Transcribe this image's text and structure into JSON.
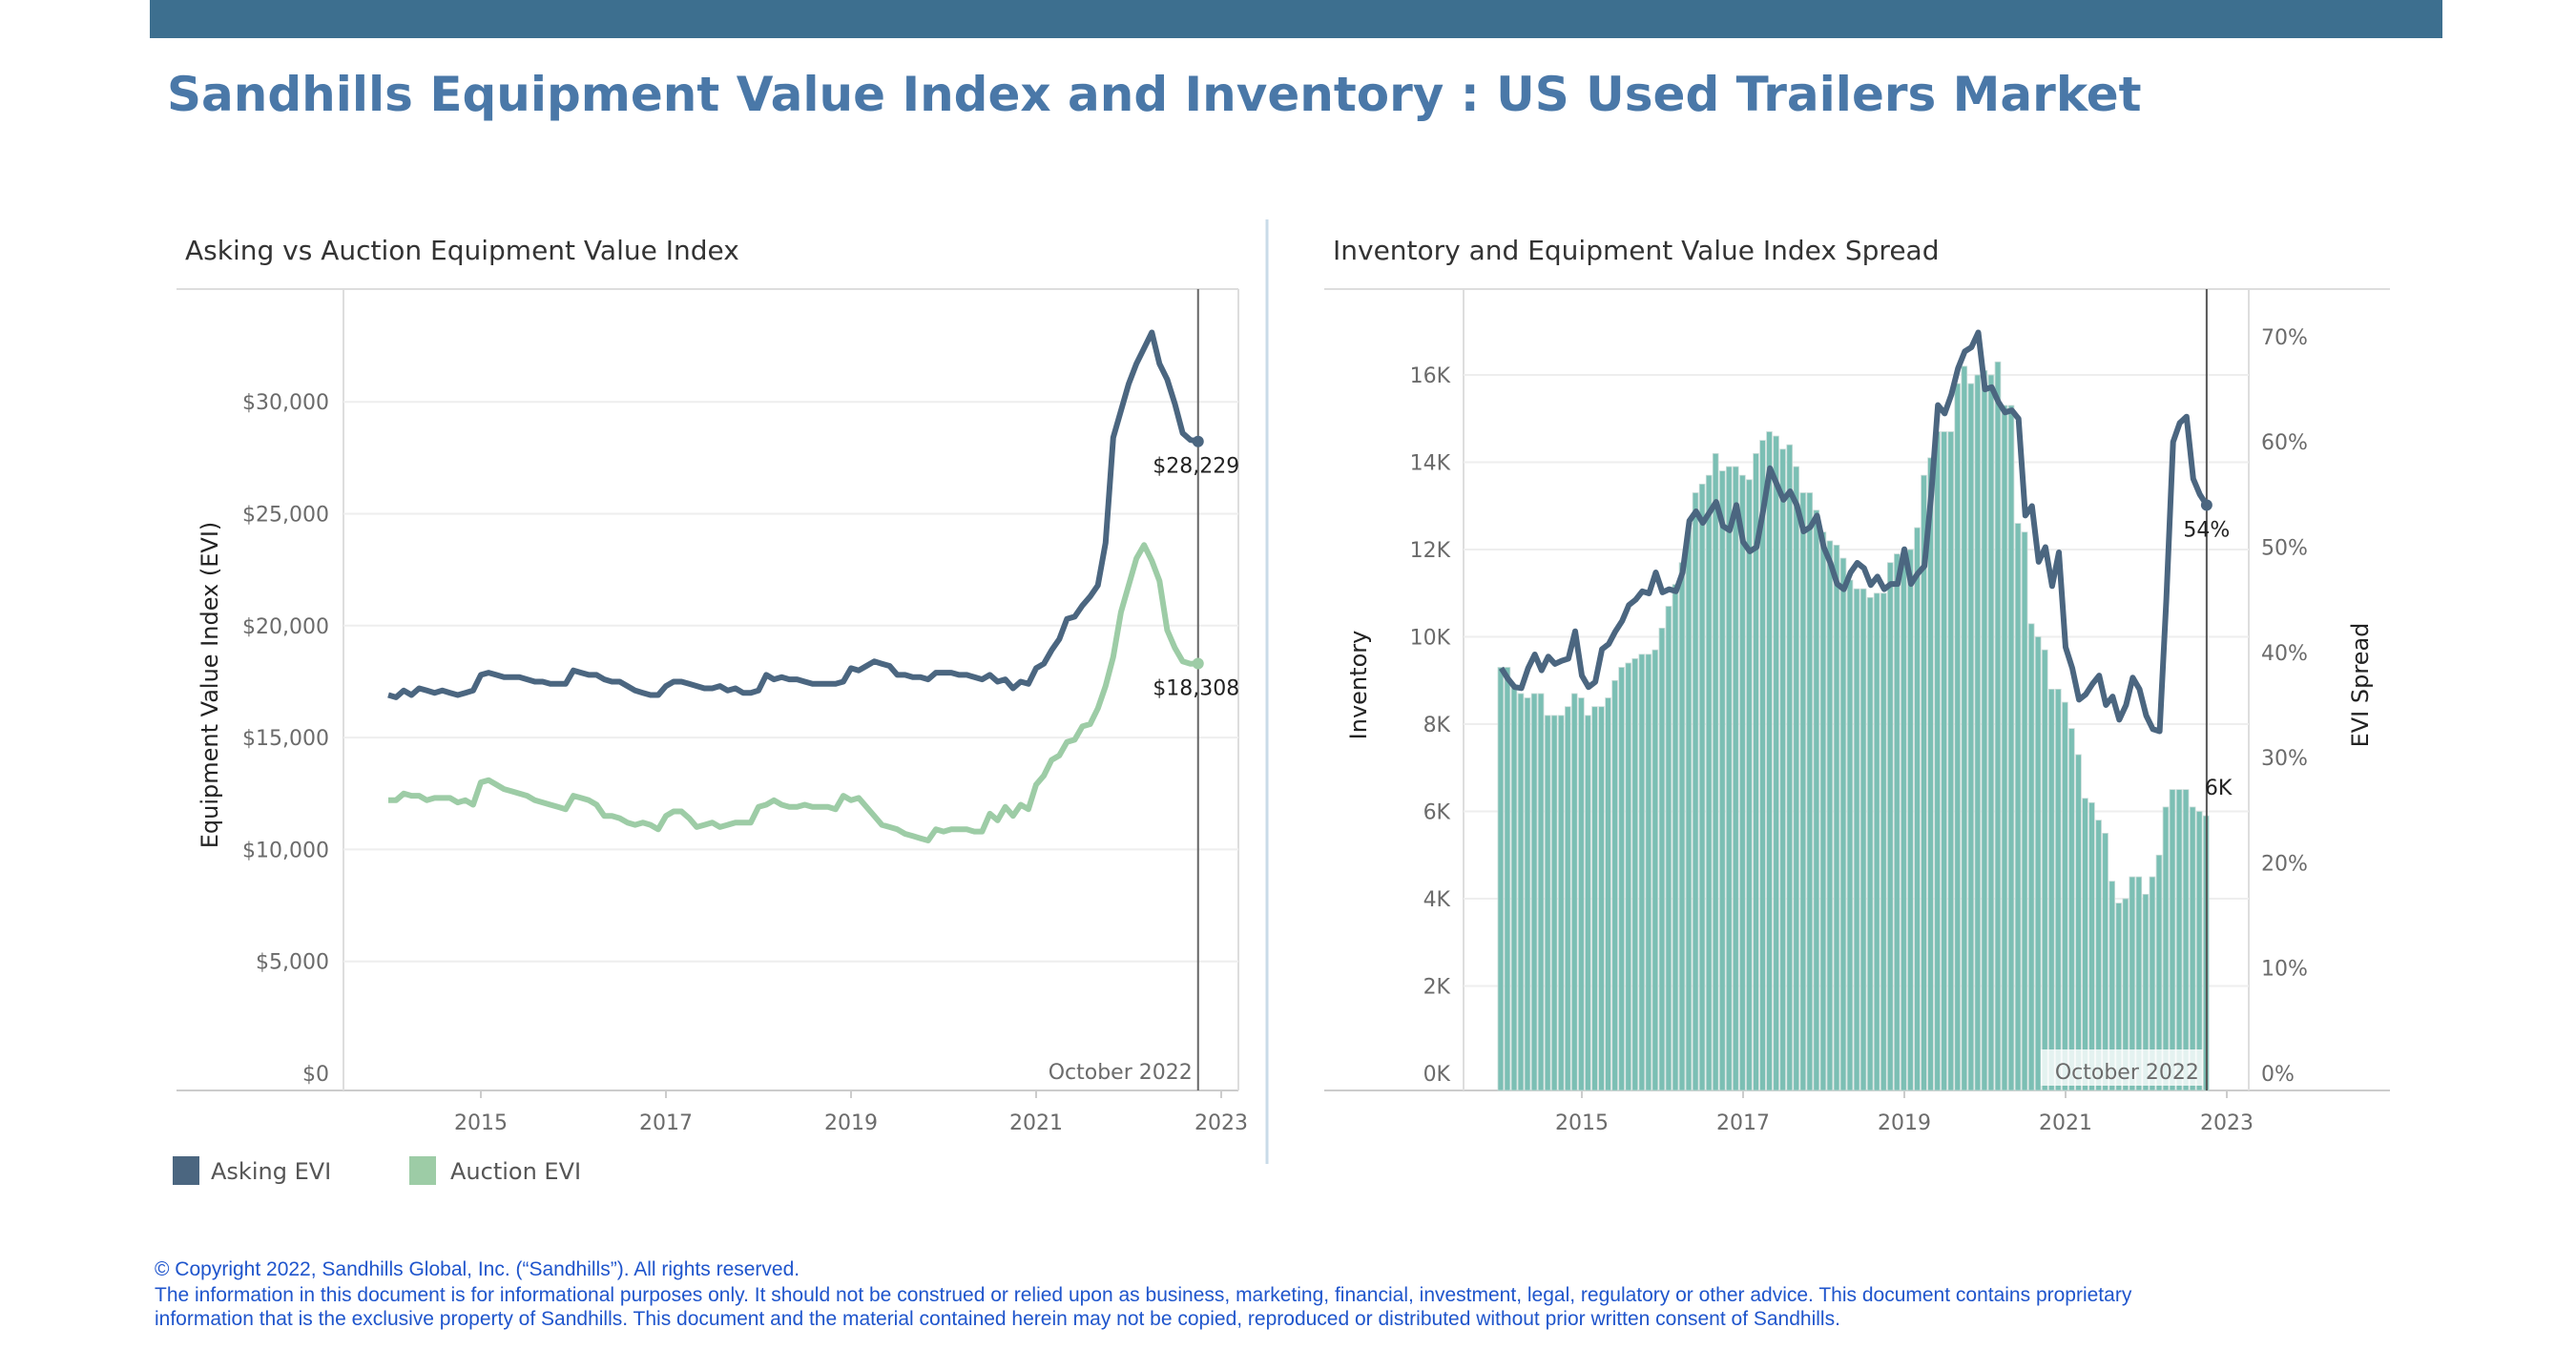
{
  "header": {
    "title": "Sandhills Equipment Value Index and Inventory : US Used Trailers Market",
    "bar_color": "#3d6f8f"
  },
  "footer": {
    "lines": [
      "© Copyright 2022, Sandhills Global, Inc. (“Sandhills”). All rights reserved.",
      "The information in this document is for informational purposes only.  It should not be construed or relied upon as business, marketing, financial, investment, legal, regulatory or other advice. This document contains proprietary",
      "information that is the exclusive property of Sandhills. This document and the material contained herein may not be copied, reproduced or distributed without prior written consent of Sandhills."
    ]
  },
  "chart_data": [
    {
      "type": "line",
      "title": "Asking vs Auction Equipment Value Index",
      "ylabel": "Equipment Value Index (EVI)",
      "xlabel": "",
      "x_start": "2014-01",
      "x_end": "2022-10",
      "x_frequency": "monthly",
      "xticks": [
        "2015",
        "2017",
        "2019",
        "2021",
        "2023"
      ],
      "yticks": [
        "$0",
        "$5,000",
        "$10,000",
        "$15,000",
        "$20,000",
        "$25,000",
        "$30,000"
      ],
      "ylim": [
        0,
        34000
      ],
      "grid": true,
      "reference_line": {
        "date": "2022-10",
        "label": "October 2022"
      },
      "legend": {
        "placement": "bottom-left"
      },
      "series": [
        {
          "name": "Asking EVI",
          "color": "#4b6680",
          "end_label": "$28,229",
          "values": [
            16900,
            16800,
            17100,
            16900,
            17200,
            17100,
            17000,
            17100,
            17000,
            16900,
            17000,
            17100,
            17800,
            17900,
            17800,
            17700,
            17700,
            17700,
            17600,
            17500,
            17500,
            17400,
            17400,
            17400,
            18000,
            17900,
            17800,
            17800,
            17600,
            17500,
            17500,
            17300,
            17100,
            17000,
            16900,
            16900,
            17300,
            17500,
            17500,
            17400,
            17300,
            17200,
            17200,
            17300,
            17100,
            17200,
            17000,
            17000,
            17100,
            17800,
            17600,
            17700,
            17600,
            17600,
            17500,
            17400,
            17400,
            17400,
            17400,
            17500,
            18100,
            18000,
            18200,
            18400,
            18300,
            18200,
            17800,
            17800,
            17700,
            17700,
            17600,
            17900,
            17900,
            17900,
            17800,
            17800,
            17700,
            17600,
            17800,
            17500,
            17600,
            17200,
            17500,
            17400,
            18100,
            18300,
            18900,
            19400,
            20300,
            20400,
            20900,
            21300,
            21800,
            23700,
            28400,
            29600,
            30800,
            31700,
            32400,
            33100,
            31700,
            31000,
            29900,
            28600,
            28300,
            28229
          ]
        },
        {
          "name": "Auction EVI",
          "color": "#9dcca6",
          "end_label": "$18,308",
          "values": [
            12200,
            12200,
            12500,
            12400,
            12400,
            12200,
            12300,
            12300,
            12300,
            12100,
            12200,
            12000,
            13000,
            13100,
            12900,
            12700,
            12600,
            12500,
            12400,
            12200,
            12100,
            12000,
            11900,
            11800,
            12400,
            12300,
            12200,
            12000,
            11500,
            11500,
            11400,
            11200,
            11100,
            11200,
            11100,
            10900,
            11500,
            11700,
            11700,
            11400,
            11000,
            11100,
            11200,
            11000,
            11100,
            11200,
            11200,
            11200,
            11900,
            12000,
            12200,
            12000,
            11900,
            11900,
            12000,
            11900,
            11900,
            11900,
            11800,
            12400,
            12200,
            12300,
            11900,
            11500,
            11100,
            11000,
            10900,
            10700,
            10600,
            10500,
            10400,
            10900,
            10800,
            10900,
            10900,
            10900,
            10800,
            10800,
            11600,
            11300,
            11900,
            11500,
            12000,
            11800,
            12900,
            13300,
            14000,
            14200,
            14800,
            14900,
            15500,
            15600,
            16300,
            17300,
            18600,
            20600,
            21800,
            23000,
            23600,
            22900,
            22000,
            19800,
            19000,
            18400,
            18300,
            18308
          ]
        }
      ]
    },
    {
      "type": "bar+line",
      "title": "Inventory and Equipment Value Index Spread",
      "ylabel": "Inventory",
      "y2label": "EVI Spread",
      "xlabel": "",
      "x_start": "2014-01",
      "x_end": "2022-10",
      "x_frequency": "monthly",
      "xticks": [
        "2015",
        "2017",
        "2019",
        "2021",
        "2023"
      ],
      "yticks": [
        "0K",
        "2K",
        "4K",
        "6K",
        "8K",
        "10K",
        "12K",
        "14K",
        "16K"
      ],
      "y2ticks": [
        "0%",
        "10%",
        "20%",
        "30%",
        "40%",
        "50%",
        "60%",
        "70%"
      ],
      "ylim": [
        0,
        17800
      ],
      "y2lim": [
        0,
        74
      ],
      "grid": true,
      "reference_line": {
        "date": "2022-10",
        "label": "October 2022"
      },
      "series": [
        {
          "name": "Inventory",
          "kind": "bar",
          "color": "#7bbfb4",
          "end_label": "6K",
          "values": [
            9300,
            9300,
            8900,
            8700,
            8600,
            8700,
            8700,
            8200,
            8200,
            8200,
            8400,
            8700,
            8600,
            8200,
            8400,
            8400,
            8600,
            9000,
            9300,
            9400,
            9500,
            9600,
            9600,
            9700,
            10200,
            10700,
            11200,
            11700,
            12500,
            13300,
            13500,
            13700,
            14200,
            13800,
            13900,
            13900,
            13700,
            13600,
            14200,
            14500,
            14700,
            14600,
            14300,
            14400,
            13900,
            13300,
            13300,
            12900,
            12400,
            12200,
            12100,
            11800,
            11300,
            11100,
            11100,
            10900,
            11000,
            11000,
            11700,
            11900,
            11900,
            12000,
            12500,
            13700,
            14100,
            14700,
            14700,
            14700,
            15800,
            16200,
            15800,
            16000,
            16100,
            16000,
            16300,
            15300,
            15300,
            12600,
            12400,
            10300,
            10000,
            9700,
            8800,
            8800,
            8500,
            7900,
            7300,
            6300,
            6200,
            5800,
            5500,
            4400,
            3900,
            4000,
            4500,
            4500,
            4100,
            4500,
            5000,
            6100,
            6500,
            6500,
            6500,
            6100,
            6000,
            5900
          ]
        },
        {
          "name": "EVI Spread",
          "kind": "line",
          "axis": "right",
          "color": "#4b6680",
          "end_label": "54%",
          "values": [
            38.5,
            37.5,
            36.7,
            36.6,
            38.5,
            39.8,
            38.3,
            39.6,
            38.9,
            39.2,
            39.4,
            42.0,
            37.8,
            36.7,
            37.2,
            40.3,
            40.8,
            42.0,
            43.0,
            44.5,
            45.0,
            45.8,
            45.6,
            47.6,
            45.7,
            46.0,
            45.8,
            47.6,
            52.5,
            53.4,
            52.3,
            53.3,
            54.3,
            52.0,
            51.6,
            54.0,
            50.5,
            49.6,
            50.0,
            53.5,
            57.5,
            56.0,
            54.5,
            55.3,
            54.0,
            51.5,
            51.9,
            53.0,
            50.0,
            48.5,
            46.5,
            46.0,
            47.6,
            48.5,
            48.0,
            46.4,
            47.2,
            46.0,
            46.5,
            46.5,
            49.8,
            46.5,
            47.5,
            48.2,
            55.0,
            63.5,
            62.7,
            64.5,
            67.0,
            68.6,
            69.0,
            70.4,
            65.0,
            65.2,
            63.8,
            62.8,
            63.0,
            62.2,
            53.0,
            53.9,
            48.6,
            50.0,
            46.3,
            49.5,
            40.5,
            38.5,
            35.5,
            36.0,
            37.0,
            37.8,
            35.0,
            35.8,
            33.6,
            35.0,
            37.6,
            36.5,
            34.0,
            32.7,
            32.5,
            45.0,
            60.0,
            61.8,
            62.4,
            56.5,
            55.0,
            54.0
          ]
        }
      ]
    }
  ]
}
